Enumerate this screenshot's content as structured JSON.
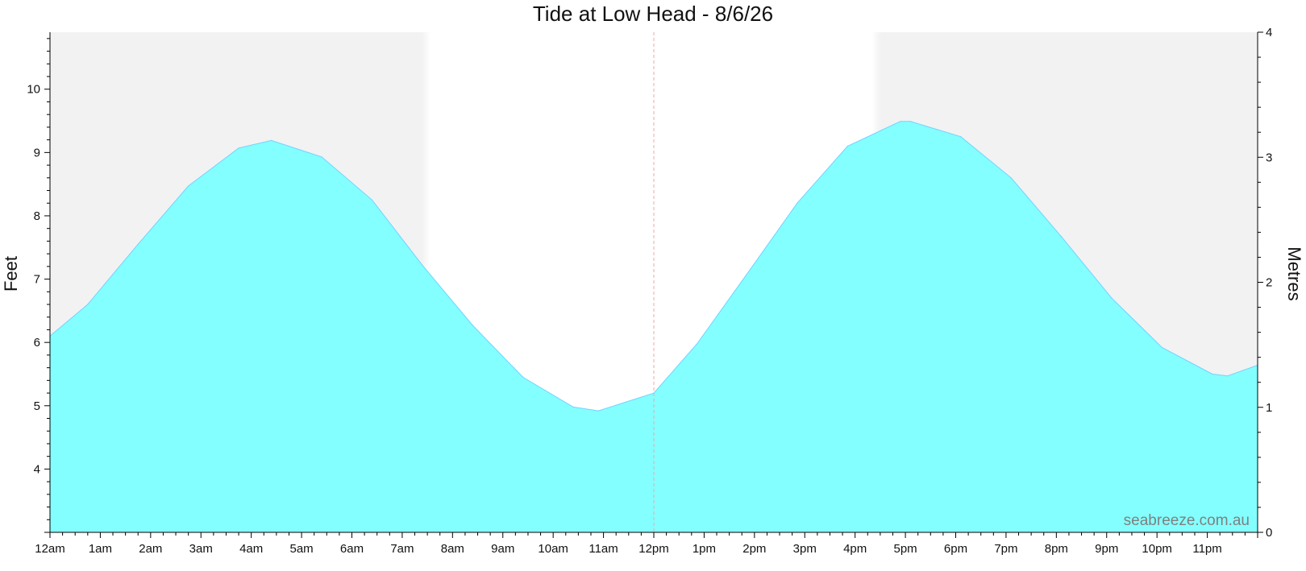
{
  "chart_data": {
    "type": "area",
    "title": "Tide at Low Head - 8/6/26",
    "ylabel_left": "Feet",
    "ylabel_right": "Metres",
    "ylim_feet": [
      3,
      10.9
    ],
    "ylim_metres": [
      0,
      4
    ],
    "xlim_hours": [
      0,
      24
    ],
    "x_ticks": [
      {
        "hour": 0,
        "label": "12am"
      },
      {
        "hour": 1,
        "label": "1am"
      },
      {
        "hour": 2,
        "label": "2am"
      },
      {
        "hour": 3,
        "label": "3am"
      },
      {
        "hour": 4,
        "label": "4am"
      },
      {
        "hour": 5,
        "label": "5am"
      },
      {
        "hour": 6,
        "label": "6am"
      },
      {
        "hour": 7,
        "label": "7am"
      },
      {
        "hour": 8,
        "label": "8am"
      },
      {
        "hour": 9,
        "label": "9am"
      },
      {
        "hour": 10,
        "label": "10am"
      },
      {
        "hour": 11,
        "label": "11am"
      },
      {
        "hour": 12,
        "label": "12pm"
      },
      {
        "hour": 13,
        "label": "1pm"
      },
      {
        "hour": 14,
        "label": "2pm"
      },
      {
        "hour": 15,
        "label": "3pm"
      },
      {
        "hour": 16,
        "label": "4pm"
      },
      {
        "hour": 17,
        "label": "5pm"
      },
      {
        "hour": 18,
        "label": "6pm"
      },
      {
        "hour": 19,
        "label": "7pm"
      },
      {
        "hour": 20,
        "label": "8pm"
      },
      {
        "hour": 21,
        "label": "9pm"
      },
      {
        "hour": 22,
        "label": "10pm"
      },
      {
        "hour": 23,
        "label": "11pm"
      }
    ],
    "y_ticks_left": [
      4,
      5,
      6,
      7,
      8,
      9,
      10
    ],
    "y_ticks_right": [
      0,
      1,
      2,
      3,
      4
    ],
    "series": [
      {
        "unit": "feet",
        "points": [
          [
            0.0,
            6.1
          ],
          [
            0.75,
            6.6
          ],
          [
            1.75,
            7.55
          ],
          [
            2.75,
            8.47
          ],
          [
            3.75,
            9.07
          ],
          [
            4.4,
            9.19
          ],
          [
            5.4,
            8.93
          ],
          [
            6.4,
            8.25
          ],
          [
            7.4,
            7.22
          ],
          [
            8.4,
            6.27
          ],
          [
            9.4,
            5.45
          ],
          [
            10.4,
            4.98
          ],
          [
            10.9,
            4.92
          ],
          [
            12.0,
            5.2
          ],
          [
            12.85,
            5.97
          ],
          [
            13.85,
            7.08
          ],
          [
            14.85,
            8.2
          ],
          [
            15.85,
            9.1
          ],
          [
            16.9,
            9.49
          ],
          [
            17.1,
            9.49
          ],
          [
            18.1,
            9.25
          ],
          [
            19.1,
            8.6
          ],
          [
            20.1,
            7.67
          ],
          [
            21.1,
            6.7
          ],
          [
            22.1,
            5.92
          ],
          [
            23.1,
            5.5
          ],
          [
            23.4,
            5.47
          ],
          [
            24.0,
            5.64
          ]
        ]
      }
    ],
    "night_shading": [
      [
        0,
        7.4
      ],
      [
        16.5,
        24
      ]
    ],
    "current_time_hour": 12,
    "colors": {
      "fill": "#80ffff",
      "stroke": "#6fd3ff",
      "night": "#f2f2f2",
      "current_time": "#f4a6a6",
      "axis": "#000000"
    }
  },
  "watermark": "seabreeze.com.au"
}
